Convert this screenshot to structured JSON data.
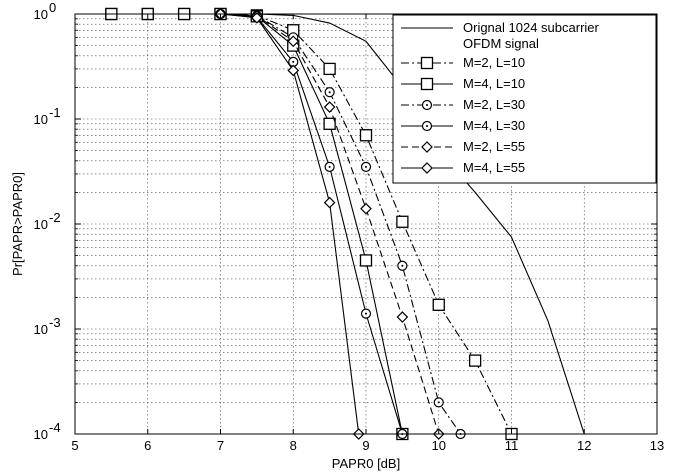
{
  "chart_data": {
    "type": "line",
    "xlabel": "PAPR0 [dB]",
    "ylabel": "Pr[PAPR>PAPR0]",
    "xlim": [
      5,
      13
    ],
    "ylim": [
      0.0001,
      1
    ],
    "yscale": "log",
    "grid": "major-and-minor, dotted",
    "x_ticks": [
      "5",
      "6",
      "7",
      "8",
      "9",
      "10",
      "11",
      "12",
      "13"
    ],
    "y_ticks": [
      {
        "base": "10",
        "exp": "-4",
        "value": 0.0001
      },
      {
        "base": "10",
        "exp": "-3",
        "value": 0.001
      },
      {
        "base": "10",
        "exp": "-2",
        "value": 0.01
      },
      {
        "base": "10",
        "exp": "-1",
        "value": 0.1
      },
      {
        "base": "10",
        "exp": "0",
        "value": 1
      }
    ],
    "legend_position": "top-right",
    "series": [
      {
        "name": "Orignal 1024 subcarrier OFDM signal",
        "name_lines": [
          "Orignal 1024 subcarrier",
          "OFDM signal"
        ],
        "line": "solid",
        "marker": "none",
        "x": [
          7.5,
          8.0,
          8.5,
          9.0,
          9.5,
          10.0,
          10.5,
          11.0,
          11.5,
          12.0
        ],
        "y": [
          1.0,
          0.97,
          0.82,
          0.55,
          0.2,
          0.05,
          0.02,
          0.0075,
          0.0012,
          0.0001
        ]
      },
      {
        "name": "M=2, L=10",
        "line": "dashdot",
        "marker": "square",
        "x": [
          5.5,
          6.0,
          6.5,
          7.0,
          7.5,
          8.0,
          8.5,
          9.0,
          9.5,
          10.0,
          10.5,
          11.0
        ],
        "y": [
          1.0,
          1.0,
          1.0,
          1.0,
          0.97,
          0.7,
          0.3,
          0.07,
          0.0105,
          0.0017,
          0.0005,
          0.0001
        ]
      },
      {
        "name": "M=4, L=10",
        "line": "solid",
        "marker": "square",
        "x": [
          5.5,
          6.0,
          6.5,
          7.0,
          7.5,
          8.0,
          8.5,
          9.0,
          9.5
        ],
        "y": [
          1.0,
          1.0,
          1.0,
          1.0,
          0.95,
          0.5,
          0.09,
          0.0045,
          0.0001
        ]
      },
      {
        "name": "M=2, L=30",
        "line": "dashdot",
        "marker": "circle",
        "x": [
          7.0,
          7.5,
          8.0,
          8.5,
          9.0,
          9.5,
          10.0,
          10.3
        ],
        "y": [
          1.0,
          0.96,
          0.6,
          0.18,
          0.035,
          0.004,
          0.0002,
          0.0001
        ]
      },
      {
        "name": "M=4, L=30",
        "line": "solid",
        "marker": "circle",
        "x": [
          7.0,
          7.5,
          8.0,
          8.5,
          9.0,
          9.5
        ],
        "y": [
          1.0,
          0.93,
          0.35,
          0.035,
          0.0014,
          0.0001
        ]
      },
      {
        "name": "M=2, L=55",
        "line": "dashed",
        "marker": "diamond",
        "x": [
          7.0,
          7.5,
          8.0,
          8.5,
          9.0,
          9.5,
          10.0
        ],
        "y": [
          1.0,
          0.96,
          0.55,
          0.13,
          0.014,
          0.0013,
          0.0001
        ]
      },
      {
        "name": "M=4, L=55",
        "line": "solid",
        "marker": "diamond",
        "x": [
          7.0,
          7.5,
          8.0,
          8.5,
          8.9
        ],
        "y": [
          1.0,
          0.92,
          0.29,
          0.016,
          0.0001
        ]
      }
    ]
  }
}
